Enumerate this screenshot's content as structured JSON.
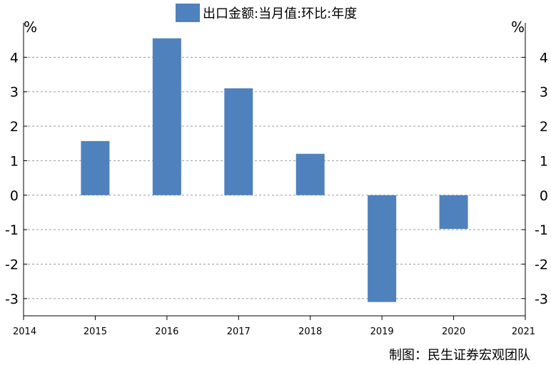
{
  "legend": {
    "label": "出口金额:当月值:环比:年度",
    "color": "#4f81bd"
  },
  "unit_left": "%",
  "unit_right": "%",
  "credit": "制图：民生证券宏观团队",
  "chart_data": {
    "type": "bar",
    "categories": [
      "2015",
      "2016",
      "2017",
      "2018",
      "2019",
      "2020"
    ],
    "series": [
      {
        "name": "出口金额:当月值:环比:年度",
        "values": [
          1.57,
          4.55,
          3.1,
          1.2,
          -3.1,
          -0.98
        ],
        "color": "#4f81bd"
      }
    ],
    "x_ticks": [
      "2014",
      "2015",
      "2016",
      "2017",
      "2018",
      "2019",
      "2020",
      "2021"
    ],
    "x_range": [
      2014,
      2021
    ],
    "y_ticks": [
      4,
      3,
      2,
      1,
      0,
      -1,
      -2,
      -3
    ],
    "ylim": [
      -3.5,
      5
    ],
    "ylabel": "%",
    "y2label": "%",
    "grid": true,
    "legend_position": "top-center"
  }
}
